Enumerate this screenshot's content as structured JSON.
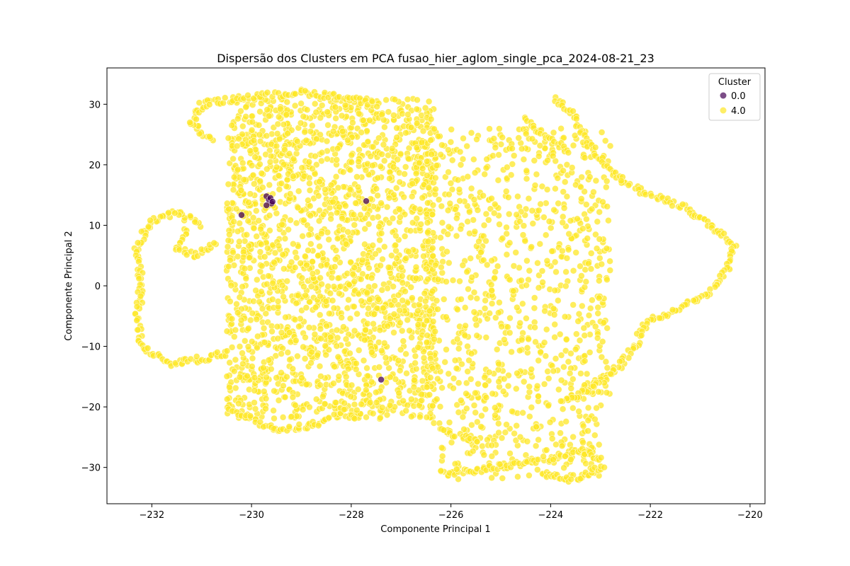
{
  "chart_data": {
    "type": "scatter",
    "title": "Dispersão dos Clusters em PCA fusao_hier_aglom_single_pca_2024-08-21_23",
    "xlabel": "Componente Principal 1",
    "ylabel": "Componente Principal 2",
    "xlim": [
      -232.9,
      -219.7
    ],
    "ylim": [
      -36,
      36
    ],
    "xticks": [
      -232,
      -230,
      -228,
      -226,
      -224,
      -222,
      -220
    ],
    "xtick_labels": [
      "−232",
      "−230",
      "−228",
      "−226",
      "−224",
      "−222",
      "−220"
    ],
    "yticks": [
      -30,
      -20,
      -10,
      0,
      10,
      20,
      30
    ],
    "ytick_labels": [
      "−30",
      "−20",
      "−10",
      "0",
      "10",
      "20",
      "30"
    ],
    "grid": false,
    "legend": {
      "title": "Cluster",
      "placement": "top-right",
      "entries": [
        "0.0",
        "4.0"
      ]
    },
    "series": [
      {
        "name": "0.0",
        "color": "#440154",
        "points": [
          [
            -229.7,
            14.8
          ],
          [
            -229.65,
            14.2
          ],
          [
            -229.6,
            13.6
          ],
          [
            -229.7,
            13.3
          ],
          [
            -229.62,
            14.5
          ],
          [
            -229.58,
            13.9
          ],
          [
            -227.7,
            14.0
          ],
          [
            -230.2,
            11.7
          ],
          [
            -227.4,
            -15.5
          ]
        ]
      },
      {
        "name": "4.0",
        "color": "#fde725",
        "regions": [
          {
            "xrange": [
              -230.5,
              -226.3
            ],
            "yrange": [
              -22,
              31
            ],
            "density": "high"
          },
          {
            "xrange": [
              -226.5,
              -222.8
            ],
            "yrange": [
              -20,
              26
            ],
            "density": "medium"
          },
          {
            "xrange": [
              -226.2,
              -223.0
            ],
            "yrange": [
              -32,
              -20
            ],
            "density": "medium"
          }
        ],
        "paths": [
          [
            [
              -230.8,
              24
            ],
            [
              -231.2,
              27
            ],
            [
              -231.0,
              30
            ],
            [
              -230.2,
              31
            ],
            [
              -229.0,
              32
            ],
            [
              -228.0,
              31
            ],
            [
              -227.5,
              30
            ]
          ],
          [
            [
              -231.0,
              10
            ],
            [
              -231.5,
              12
            ],
            [
              -232.0,
              11
            ],
            [
              -232.3,
              6
            ],
            [
              -232.2,
              0
            ],
            [
              -232.3,
              -5
            ],
            [
              -232.2,
              -10
            ],
            [
              -231.6,
              -13
            ],
            [
              -231.0,
              -12
            ],
            [
              -230.4,
              -11
            ]
          ],
          [
            [
              -231.3,
              9
            ],
            [
              -231.5,
              6
            ],
            [
              -231.1,
              5
            ],
            [
              -230.7,
              7
            ]
          ],
          [
            [
              -222.5,
              17
            ],
            [
              -222.0,
              15
            ],
            [
              -221.3,
              13
            ],
            [
              -220.8,
              10
            ],
            [
              -220.3,
              7
            ],
            [
              -220.5,
              2
            ],
            [
              -220.8,
              -1
            ],
            [
              -221.5,
              -4
            ],
            [
              -222.1,
              -6
            ],
            [
              -222.3,
              -10
            ],
            [
              -222.7,
              -14
            ],
            [
              -223.2,
              -17
            ],
            [
              -223.8,
              -19
            ]
          ],
          [
            [
              -223.9,
              31
            ],
            [
              -223.5,
              28
            ],
            [
              -223.3,
              24
            ],
            [
              -222.9,
              20
            ],
            [
              -222.5,
              17
            ]
          ],
          [
            [
              -224.5,
              28
            ],
            [
              -224.2,
              25
            ],
            [
              -223.6,
              22
            ]
          ],
          [
            [
              -226.2,
              -31
            ],
            [
              -225.5,
              -30.5
            ],
            [
              -224.8,
              -29.5
            ],
            [
              -224.0,
              -28.5
            ],
            [
              -223.4,
              -27
            ],
            [
              -222.9,
              -29
            ]
          ],
          [
            [
              -224.2,
              -31
            ],
            [
              -223.5,
              -32
            ],
            [
              -222.9,
              -29.5
            ]
          ],
          [
            [
              -226.3,
              -23
            ],
            [
              -225.8,
              -25
            ],
            [
              -225.4,
              -26
            ]
          ],
          [
            [
              -230.5,
              -20
            ],
            [
              -229.5,
              -24
            ],
            [
              -228.8,
              -23
            ],
            [
              -228.4,
              -22
            ]
          ]
        ]
      }
    ]
  }
}
